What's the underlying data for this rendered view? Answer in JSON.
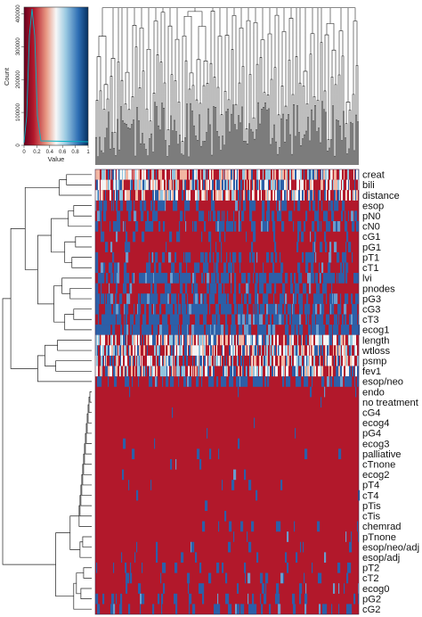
{
  "chart_data": {
    "type": "heatmap",
    "rows": [
      "creat",
      "bili",
      "distance",
      "esop",
      "pN0",
      "cN0",
      "cG1",
      "pG1",
      "pT1",
      "cT1",
      "lvi",
      "pnodes",
      "pG3",
      "cG3",
      "cT3",
      "ecog1",
      "length",
      "wtloss",
      "psmp",
      "fev1",
      "esop/neo",
      "endo",
      "no treatment",
      "cG4",
      "ecog4",
      "pG4",
      "ecog3",
      "palliative",
      "cTnone",
      "ecog2",
      "pT4",
      "cT4",
      "pTis",
      "cTis",
      "chemrad",
      "pTnone",
      "esop/neo/adj",
      "esop/adj",
      "pT2",
      "cT2",
      "ecog0",
      "pG2",
      "cG2"
    ],
    "color_key": {
      "xlabel": "Value",
      "ylabel": "Count",
      "x_ticks": [
        "0",
        "0.2",
        "0.4",
        "0.6",
        "0.8",
        "1"
      ],
      "y_ticks": [
        "0",
        "100000",
        "200000",
        "300000",
        "400000"
      ],
      "xlim": [
        0,
        1
      ],
      "ylim": [
        0,
        420000
      ],
      "low_color": "#b2182b",
      "mid_color": "#f7f7f7",
      "high_color": "#2166ac"
    },
    "row_profile": [
      0.5,
      0.5,
      0.5,
      0.35,
      0.35,
      0.4,
      0.15,
      0.15,
      0.25,
      0.3,
      0.65,
      0.35,
      0.6,
      0.6,
      0.65,
      0.7,
      0.5,
      0.5,
      0.5,
      0.5,
      0.45,
      0.01,
      0.01,
      0.01,
      0.01,
      0.01,
      0.02,
      0.02,
      0.02,
      0.03,
      0.03,
      0.03,
      0.02,
      0.02,
      0.05,
      0.06,
      0.08,
      0.08,
      0.12,
      0.12,
      0.15,
      0.2,
      0.25
    ],
    "row_continuous": [
      true,
      true,
      true,
      false,
      false,
      false,
      false,
      false,
      false,
      false,
      false,
      false,
      false,
      false,
      false,
      false,
      true,
      true,
      true,
      true,
      false,
      false,
      false,
      false,
      false,
      false,
      false,
      false,
      false,
      false,
      false,
      false,
      false,
      false,
      false,
      false,
      false,
      false,
      false,
      false,
      false,
      false,
      false
    ],
    "cluster_order_note": "",
    "colors": {
      "red": "#b2182b",
      "blue": "#2c5fa8",
      "white": "#f7f7f7"
    }
  }
}
